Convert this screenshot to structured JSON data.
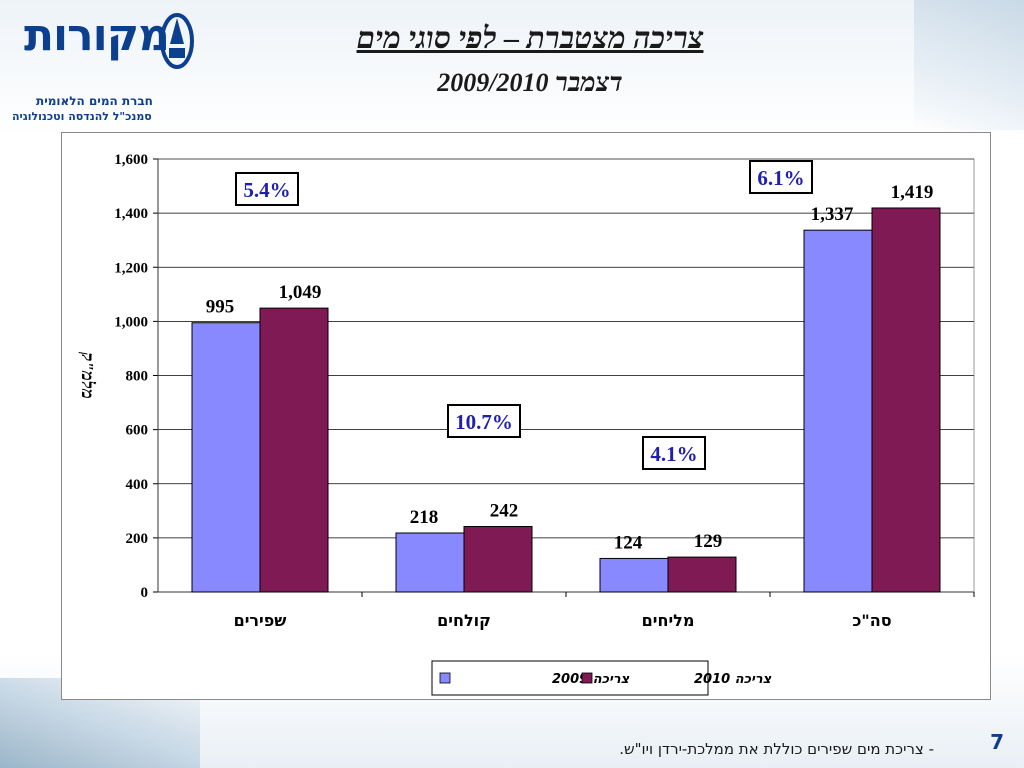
{
  "header": {
    "title": "צריכה מצטברת – לפי סוגי מים",
    "subtitle": "דצמבר 2009/2010"
  },
  "logo": {
    "name": "מקורות",
    "line1": "חברת המים הלאומית",
    "line2": "סמנכ\"ל להנדסה וטכנולוגיה"
  },
  "footer": {
    "note": "- צריכת מים שפירים כוללת את ממלכת-ירדן ויו\"ש.",
    "page_number": "7"
  },
  "colors": {
    "series_2009": "#8888ff",
    "series_2010": "#7f1a55",
    "pct_text": "#1f1fb0",
    "accent": "#0d3f8f"
  },
  "chart_data": {
    "type": "bar",
    "ylabel": "מלמ\"ק",
    "ylim": [
      0,
      1600
    ],
    "yticks": [
      "0",
      "200",
      "400",
      "600",
      "800",
      "1,000",
      "1,200",
      "1,400",
      "1,600"
    ],
    "categories": [
      "שפירים",
      "קולחים",
      "מליחים",
      "סה\"כ"
    ],
    "series": [
      {
        "name": "צריכה 2009",
        "values": [
          995,
          218,
          124,
          1337
        ],
        "labels": [
          "995",
          "218",
          "124",
          "1,337"
        ]
      },
      {
        "name": "צריכה 2010",
        "values": [
          1049,
          242,
          129,
          1419
        ],
        "labels": [
          "1,049",
          "242",
          "129",
          "1,419"
        ]
      }
    ],
    "annotations": [
      "5.4%",
      "10.7%",
      "4.1%",
      "6.1%"
    ],
    "grid": true,
    "legend": "bottom"
  }
}
